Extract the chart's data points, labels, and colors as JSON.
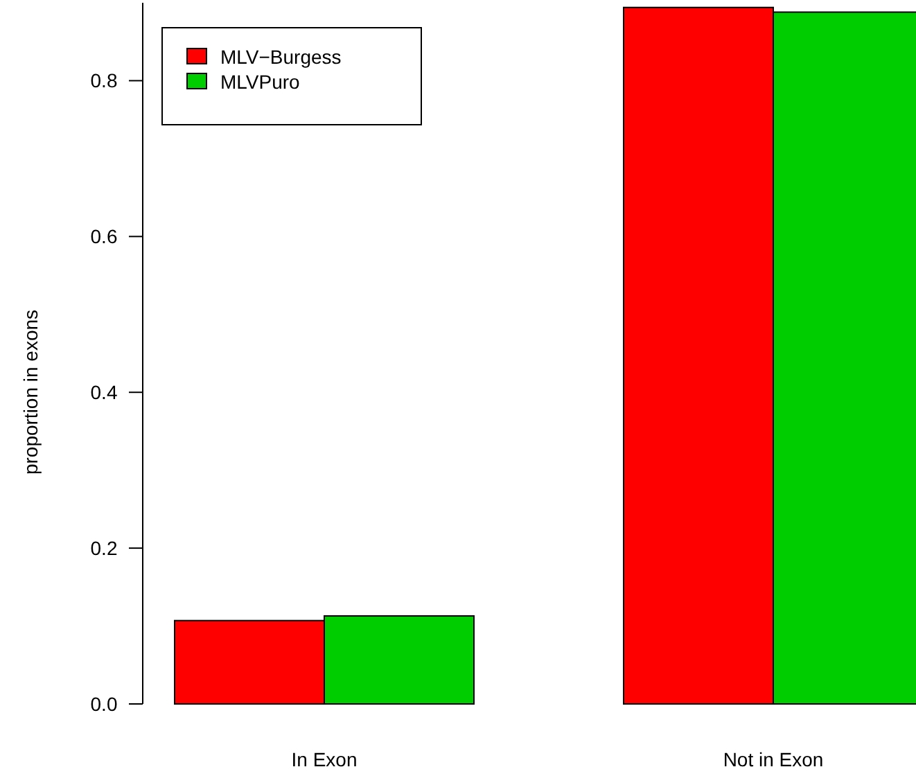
{
  "chart_data": {
    "type": "bar",
    "ylabel": "proportion in exons",
    "categories": [
      "In Exon",
      "Not in Exon"
    ],
    "series": [
      {
        "name": "MLV−Burgess",
        "color": "#ff0000",
        "values": [
          0.107,
          0.894
        ]
      },
      {
        "name": "MLVPuro",
        "color": "#00cd00",
        "values": [
          0.113,
          0.888
        ]
      }
    ],
    "ylim": [
      0,
      0.9
    ],
    "yticks": [
      {
        "value": 0,
        "label": "0.0"
      },
      {
        "value": 0.2,
        "label": "0.2"
      },
      {
        "value": 0.4,
        "label": "0.4"
      },
      {
        "value": 0.6,
        "label": "0.6"
      },
      {
        "value": 0.8,
        "label": "0.8"
      }
    ],
    "legend": "top left"
  }
}
